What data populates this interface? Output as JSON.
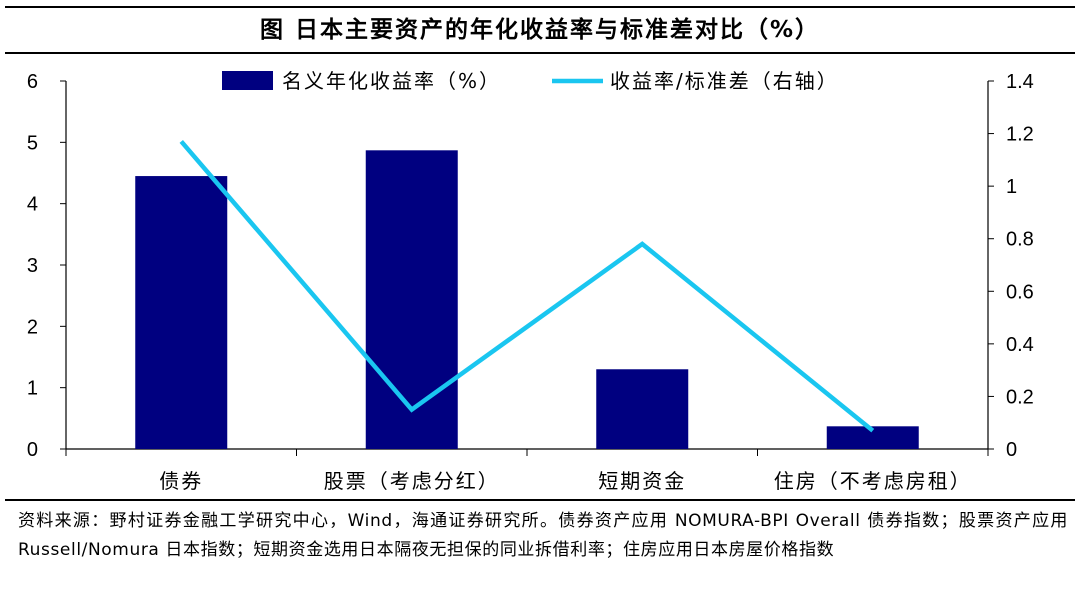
{
  "title": "图   日本主要资产的年化收益率与标准差对比（%）",
  "source": "资料来源：野村证券金融工学研究中心，Wind，海通证券研究所。债券资产应用 NOMURA-BPI Overall 债券指数；股票资产应用 Russell/Nomura 日本指数；短期资金选用日本隔夜无担保的同业拆借利率；住房应用日本房屋价格指数",
  "chart_data": {
    "type": "bar",
    "categories": [
      "债券",
      "股票（考虑分红）",
      "短期资金",
      "住房（不考虑房租）"
    ],
    "series": [
      {
        "name": "名义年化收益率（%）",
        "type": "bar",
        "axis": "left",
        "color": "#000080",
        "values": [
          4.45,
          4.87,
          1.3,
          0.37
        ]
      },
      {
        "name": "收益率/标准差（右轴）",
        "type": "line",
        "axis": "right",
        "color": "#1ac6f0",
        "values": [
          1.17,
          0.15,
          0.78,
          0.07
        ]
      }
    ],
    "ylim_left": [
      0,
      6
    ],
    "yticks_left": [
      "0",
      "1",
      "2",
      "3",
      "4",
      "5",
      "6"
    ],
    "ylim_right": [
      0,
      1.4
    ],
    "yticks_right": [
      "0",
      "0.2",
      "0.4",
      "0.6",
      "0.8",
      "1",
      "1.2",
      "1.4"
    ],
    "legend_position": "top",
    "grid": false
  }
}
